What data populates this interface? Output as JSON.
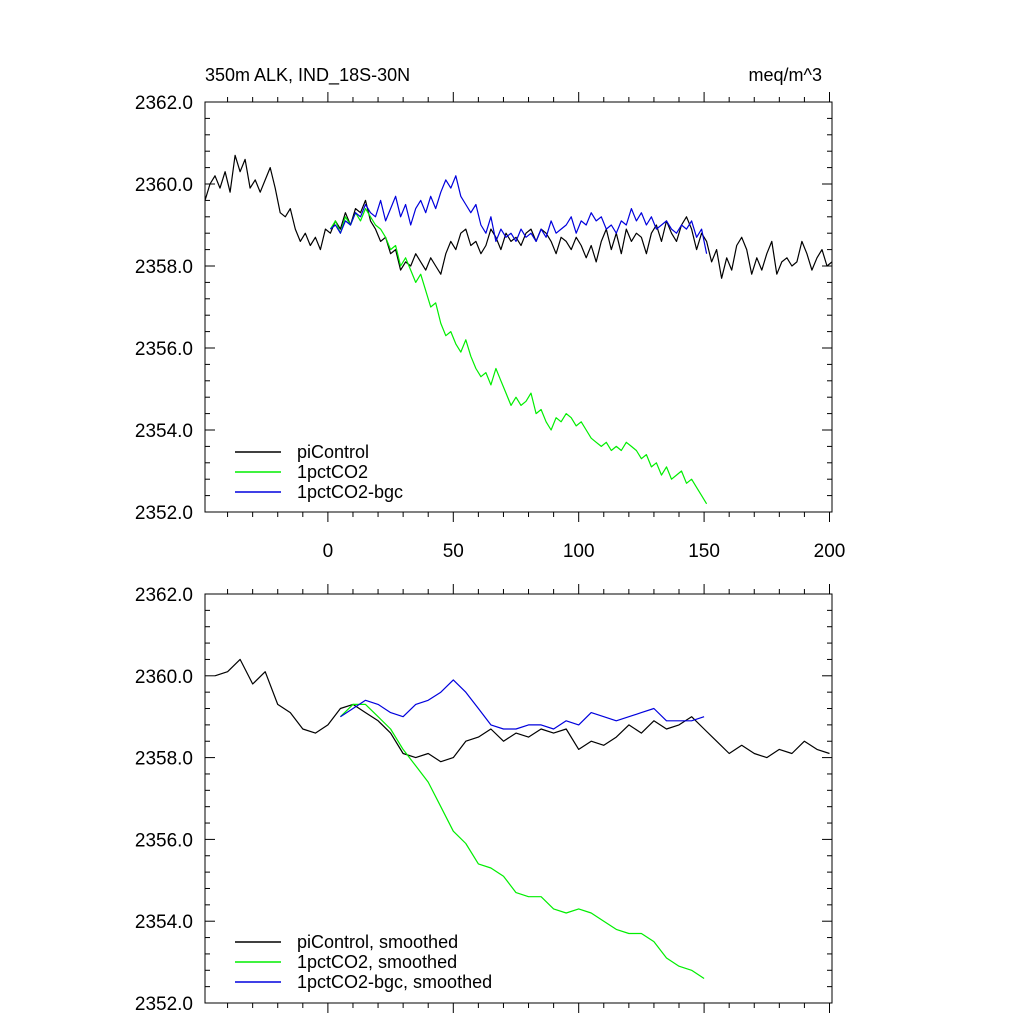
{
  "figure": {
    "title_left": "350m ALK, IND_18S-30N",
    "title_right": "meq/m^3"
  },
  "colors": {
    "piControl": "#000000",
    "1pctCO2": "#00ee00",
    "1pctCO2-bgc": "#0000dd"
  },
  "chart_data": [
    {
      "type": "line",
      "panel": "top",
      "title": "350m ALK, IND_18S-30N",
      "units": "meq/m^3",
      "xlim": [
        -49,
        201
      ],
      "ylim": [
        2352,
        2362
      ],
      "xticks": [
        0,
        50,
        100,
        150,
        200
      ],
      "xtick_labels": [
        "0",
        "50",
        "100",
        "150",
        "200"
      ],
      "yticks": [
        2352,
        2354,
        2356,
        2358,
        2360,
        2362
      ],
      "ytick_labels": [
        "2352.0",
        "2354.0",
        "2356.0",
        "2358.0",
        "2360.0",
        "2362.0"
      ],
      "show_xtick_labels": true,
      "legend_position": "bottom-left",
      "series": [
        {
          "name": "piControl",
          "color_key": "piControl",
          "x": [
            -49,
            -47,
            -45,
            -43,
            -41,
            -39,
            -37,
            -35,
            -33,
            -31,
            -29,
            -27,
            -25,
            -23,
            -21,
            -19,
            -17,
            -15,
            -13,
            -11,
            -9,
            -7,
            -5,
            -3,
            -1,
            1,
            3,
            5,
            7,
            9,
            11,
            13,
            15,
            17,
            19,
            21,
            23,
            25,
            27,
            29,
            31,
            33,
            35,
            37,
            39,
            41,
            43,
            45,
            47,
            49,
            51,
            53,
            55,
            57,
            59,
            61,
            63,
            65,
            67,
            69,
            71,
            73,
            75,
            77,
            79,
            81,
            83,
            85,
            87,
            89,
            91,
            93,
            95,
            97,
            99,
            101,
            103,
            105,
            107,
            109,
            111,
            113,
            115,
            117,
            119,
            121,
            123,
            125,
            127,
            129,
            131,
            133,
            135,
            137,
            139,
            141,
            143,
            145,
            147,
            149,
            151,
            153,
            155,
            157,
            159,
            161,
            163,
            165,
            167,
            169,
            171,
            173,
            175,
            177,
            179,
            181,
            183,
            185,
            187,
            189,
            191,
            193,
            195,
            197,
            199,
            201
          ],
          "values": [
            2359.6,
            2360.0,
            2360.2,
            2359.9,
            2360.3,
            2359.8,
            2360.7,
            2360.3,
            2360.6,
            2359.9,
            2360.1,
            2359.8,
            2360.1,
            2360.4,
            2359.9,
            2359.3,
            2359.2,
            2359.4,
            2358.9,
            2358.6,
            2358.8,
            2358.5,
            2358.7,
            2358.4,
            2358.9,
            2358.8,
            2359.1,
            2358.9,
            2359.3,
            2359.0,
            2359.4,
            2359.3,
            2359.6,
            2359.1,
            2358.9,
            2358.6,
            2358.7,
            2358.3,
            2358.4,
            2357.9,
            2358.1,
            2358.0,
            2358.3,
            2358.1,
            2357.9,
            2358.2,
            2358.0,
            2357.8,
            2358.3,
            2358.6,
            2358.4,
            2358.8,
            2358.9,
            2358.5,
            2358.6,
            2358.3,
            2358.5,
            2358.9,
            2358.7,
            2358.4,
            2358.8,
            2358.6,
            2358.7,
            2358.5,
            2358.8,
            2358.9,
            2358.6,
            2358.9,
            2358.8,
            2358.6,
            2358.3,
            2358.7,
            2358.6,
            2358.4,
            2358.7,
            2358.5,
            2358.2,
            2358.5,
            2358.1,
            2358.6,
            2358.9,
            2358.4,
            2358.8,
            2358.3,
            2358.9,
            2358.6,
            2358.8,
            2358.7,
            2358.3,
            2358.8,
            2359.0,
            2358.6,
            2359.1,
            2358.8,
            2358.6,
            2359.0,
            2359.2,
            2358.9,
            2358.4,
            2358.8,
            2358.6,
            2358.1,
            2358.4,
            2357.7,
            2358.2,
            2357.9,
            2358.5,
            2358.7,
            2358.4,
            2357.8,
            2358.2,
            2357.9,
            2358.3,
            2358.6,
            2357.8,
            2358.1,
            2358.2,
            2358.0,
            2358.1,
            2358.6,
            2358.3,
            2357.9,
            2358.2,
            2358.4,
            2358.0,
            2358.1
          ]
        },
        {
          "name": "1pctCO2",
          "color_key": "1pctCO2",
          "x": [
            1,
            3,
            5,
            7,
            9,
            11,
            13,
            15,
            17,
            19,
            21,
            23,
            25,
            27,
            29,
            31,
            33,
            35,
            37,
            39,
            41,
            43,
            45,
            47,
            49,
            51,
            53,
            55,
            57,
            59,
            61,
            63,
            65,
            67,
            69,
            71,
            73,
            75,
            77,
            79,
            81,
            83,
            85,
            87,
            89,
            91,
            93,
            95,
            97,
            99,
            101,
            103,
            105,
            107,
            109,
            111,
            113,
            115,
            117,
            119,
            121,
            123,
            125,
            127,
            129,
            131,
            133,
            135,
            137,
            139,
            141,
            143,
            145,
            147,
            149,
            151
          ],
          "values": [
            2358.9,
            2359.1,
            2358.8,
            2359.2,
            2359.0,
            2359.3,
            2359.1,
            2359.4,
            2359.2,
            2359.0,
            2358.9,
            2358.7,
            2358.4,
            2358.5,
            2358.0,
            2358.2,
            2357.9,
            2357.6,
            2357.8,
            2357.4,
            2357.0,
            2357.1,
            2356.6,
            2356.3,
            2356.4,
            2356.1,
            2355.9,
            2356.2,
            2355.8,
            2355.5,
            2355.3,
            2355.4,
            2355.1,
            2355.5,
            2355.2,
            2354.9,
            2354.6,
            2354.8,
            2354.6,
            2354.7,
            2354.9,
            2354.4,
            2354.5,
            2354.2,
            2354.0,
            2354.3,
            2354.2,
            2354.4,
            2354.3,
            2354.1,
            2354.2,
            2354.0,
            2353.8,
            2353.7,
            2353.6,
            2353.7,
            2353.5,
            2353.6,
            2353.5,
            2353.7,
            2353.6,
            2353.5,
            2353.3,
            2353.4,
            2353.1,
            2353.2,
            2352.9,
            2353.1,
            2352.8,
            2352.9,
            2353.0,
            2352.7,
            2352.8,
            2352.6,
            2352.4,
            2352.2
          ]
        },
        {
          "name": "1pctCO2-bgc",
          "color_key": "1pctCO2-bgc",
          "x": [
            1,
            3,
            5,
            7,
            9,
            11,
            13,
            15,
            17,
            19,
            21,
            23,
            25,
            27,
            29,
            31,
            33,
            35,
            37,
            39,
            41,
            43,
            45,
            47,
            49,
            51,
            53,
            55,
            57,
            59,
            61,
            63,
            65,
            67,
            69,
            71,
            73,
            75,
            77,
            79,
            81,
            83,
            85,
            87,
            89,
            91,
            93,
            95,
            97,
            99,
            101,
            103,
            105,
            107,
            109,
            111,
            113,
            115,
            117,
            119,
            121,
            123,
            125,
            127,
            129,
            131,
            133,
            135,
            137,
            139,
            141,
            143,
            145,
            147,
            149,
            151
          ],
          "values": [
            2358.9,
            2359.0,
            2358.8,
            2359.1,
            2359.0,
            2359.3,
            2359.2,
            2359.5,
            2359.3,
            2359.2,
            2359.6,
            2359.1,
            2359.4,
            2359.7,
            2359.2,
            2359.5,
            2359.0,
            2359.4,
            2359.6,
            2359.3,
            2359.7,
            2359.4,
            2359.8,
            2360.1,
            2359.9,
            2360.2,
            2359.7,
            2359.5,
            2359.3,
            2359.5,
            2359.0,
            2358.8,
            2359.2,
            2358.6,
            2358.9,
            2358.7,
            2358.8,
            2358.6,
            2358.9,
            2358.7,
            2358.8,
            2358.6,
            2358.9,
            2358.7,
            2359.1,
            2358.8,
            2358.9,
            2359.0,
            2359.2,
            2358.8,
            2359.1,
            2359.0,
            2359.3,
            2359.1,
            2359.2,
            2358.9,
            2359.0,
            2358.8,
            2359.1,
            2359.0,
            2359.4,
            2359.1,
            2359.3,
            2359.0,
            2359.2,
            2358.9,
            2359.0,
            2359.1,
            2358.9,
            2358.8,
            2359.0,
            2358.9,
            2359.1,
            2358.7,
            2358.9,
            2358.3
          ]
        }
      ]
    },
    {
      "type": "line",
      "panel": "bottom",
      "xlim": [
        -49,
        201
      ],
      "ylim": [
        2352,
        2362
      ],
      "xticks": [
        0,
        50,
        100,
        150,
        200
      ],
      "yticks": [
        2352,
        2354,
        2356,
        2358,
        2360,
        2362
      ],
      "ytick_labels": [
        "2352.0",
        "2354.0",
        "2356.0",
        "2358.0",
        "2360.0",
        "2362.0"
      ],
      "show_xtick_labels": false,
      "legend_position": "bottom-left",
      "series": [
        {
          "name": "piControl, smoothed",
          "color_key": "piControl",
          "x": [
            -45,
            -40,
            -35,
            -30,
            -25,
            -20,
            -15,
            -10,
            -5,
            0,
            5,
            10,
            15,
            20,
            25,
            30,
            35,
            40,
            45,
            50,
            55,
            60,
            65,
            70,
            75,
            80,
            85,
            90,
            95,
            100,
            105,
            110,
            115,
            120,
            125,
            130,
            135,
            140,
            145,
            150,
            155,
            160,
            165,
            170,
            175,
            180,
            185,
            190,
            195,
            200
          ],
          "values": [
            2360.0,
            2360.1,
            2360.4,
            2359.8,
            2360.1,
            2359.3,
            2359.1,
            2358.7,
            2358.6,
            2358.8,
            2359.2,
            2359.3,
            2359.1,
            2358.9,
            2358.6,
            2358.1,
            2358.0,
            2358.1,
            2357.9,
            2358.0,
            2358.4,
            2358.5,
            2358.7,
            2358.4,
            2358.6,
            2358.5,
            2358.7,
            2358.6,
            2358.7,
            2358.2,
            2358.4,
            2358.3,
            2358.5,
            2358.8,
            2358.6,
            2358.9,
            2358.7,
            2358.8,
            2359.0,
            2358.7,
            2358.4,
            2358.1,
            2358.3,
            2358.1,
            2358.0,
            2358.2,
            2358.1,
            2358.4,
            2358.2,
            2358.1
          ]
        },
        {
          "name": "1pctCO2, smoothed",
          "color_key": "1pctCO2",
          "x": [
            5,
            10,
            15,
            20,
            25,
            30,
            35,
            40,
            45,
            50,
            55,
            60,
            65,
            70,
            75,
            80,
            85,
            90,
            95,
            100,
            105,
            110,
            115,
            120,
            125,
            130,
            135,
            140,
            145,
            150
          ],
          "values": [
            2359.0,
            2359.3,
            2359.3,
            2359.0,
            2358.7,
            2358.2,
            2357.8,
            2357.4,
            2356.8,
            2356.2,
            2355.9,
            2355.4,
            2355.3,
            2355.1,
            2354.7,
            2354.6,
            2354.6,
            2354.3,
            2354.2,
            2354.3,
            2354.2,
            2354.0,
            2353.8,
            2353.7,
            2353.7,
            2353.5,
            2353.1,
            2352.9,
            2352.8,
            2352.6
          ]
        },
        {
          "name": "1pctCO2-bgc, smoothed",
          "color_key": "1pctCO2-bgc",
          "x": [
            5,
            10,
            15,
            20,
            25,
            30,
            35,
            40,
            45,
            50,
            55,
            60,
            65,
            70,
            75,
            80,
            85,
            90,
            95,
            100,
            105,
            110,
            115,
            120,
            125,
            130,
            135,
            140,
            145,
            150
          ],
          "values": [
            2359.0,
            2359.2,
            2359.4,
            2359.3,
            2359.1,
            2359.0,
            2359.3,
            2359.4,
            2359.6,
            2359.9,
            2359.6,
            2359.2,
            2358.8,
            2358.7,
            2358.7,
            2358.8,
            2358.8,
            2358.7,
            2358.9,
            2358.8,
            2359.1,
            2359.0,
            2358.9,
            2359.0,
            2359.1,
            2359.2,
            2358.9,
            2358.9,
            2358.9,
            2359.0
          ]
        }
      ]
    }
  ]
}
